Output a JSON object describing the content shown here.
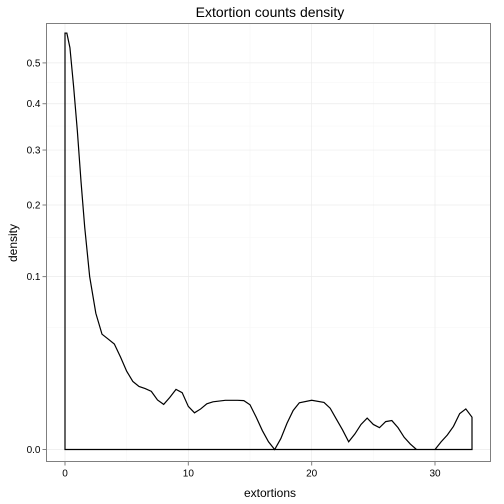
{
  "chart_data": {
    "type": "area",
    "title": "Extortion counts density",
    "xlabel": "extortions",
    "ylabel": "density",
    "y_scale": "sqrt",
    "grid": true,
    "legend": "none",
    "xlim": [
      -1.5,
      34.5
    ],
    "ylim": [
      0,
      0.6
    ],
    "x_ticks": [
      0,
      10,
      20,
      30
    ],
    "y_ticks": [
      0.0,
      0.1,
      0.2,
      0.3,
      0.4,
      0.5
    ],
    "y_tick_labels": [
      "0.0",
      "0.1",
      "0.2",
      "0.3",
      "0.4",
      "0.5"
    ],
    "series": [
      {
        "x": [
          0,
          0.15,
          0.4,
          0.7,
          1.0,
          1.3,
          1.6,
          2.0,
          2.5,
          3.0,
          3.5,
          4.0,
          4.5,
          5.0,
          5.5,
          6.0,
          6.5,
          7.0,
          7.5,
          8.0,
          8.5,
          9.0,
          9.5,
          10.0,
          10.5,
          11.0,
          11.5,
          12.0,
          13.0,
          14.0,
          14.5,
          15.0,
          15.5,
          16.0,
          16.5,
          17.0,
          17.5,
          18.0,
          18.5,
          19.0,
          20.0,
          21.0,
          21.5,
          22.0,
          22.5,
          23.0,
          23.5,
          24.0,
          24.5,
          25.0,
          25.5,
          26.0,
          26.5,
          27.0,
          27.5,
          28.0,
          28.5,
          29.0,
          29.5,
          30.0,
          30.5,
          31.0,
          31.5,
          32.0,
          32.5,
          33.0
        ],
        "y": [
          0.58,
          0.58,
          0.54,
          0.44,
          0.34,
          0.24,
          0.165,
          0.1,
          0.0621,
          0.0445,
          0.0408,
          0.0372,
          0.0286,
          0.0205,
          0.0155,
          0.0133,
          0.0124,
          0.0113,
          0.0082,
          0.0068,
          0.0091,
          0.0121,
          0.0108,
          0.0062,
          0.0045,
          0.0055,
          0.007,
          0.0076,
          0.0081,
          0.0081,
          0.008,
          0.0067,
          0.0035,
          0.0012,
          0.0002,
          0.0,
          0.0004,
          0.0023,
          0.0051,
          0.0073,
          0.0081,
          0.0074,
          0.0057,
          0.0031,
          0.0013,
          0.0002,
          0.0008,
          0.0021,
          0.0033,
          0.0021,
          0.0016,
          0.0026,
          0.0028,
          0.0016,
          0.0005,
          0.0001,
          0.0,
          0.0,
          0.0,
          0.0,
          0.0002,
          0.0007,
          0.0018,
          0.0043,
          0.0055,
          0.0035
        ]
      }
    ]
  }
}
